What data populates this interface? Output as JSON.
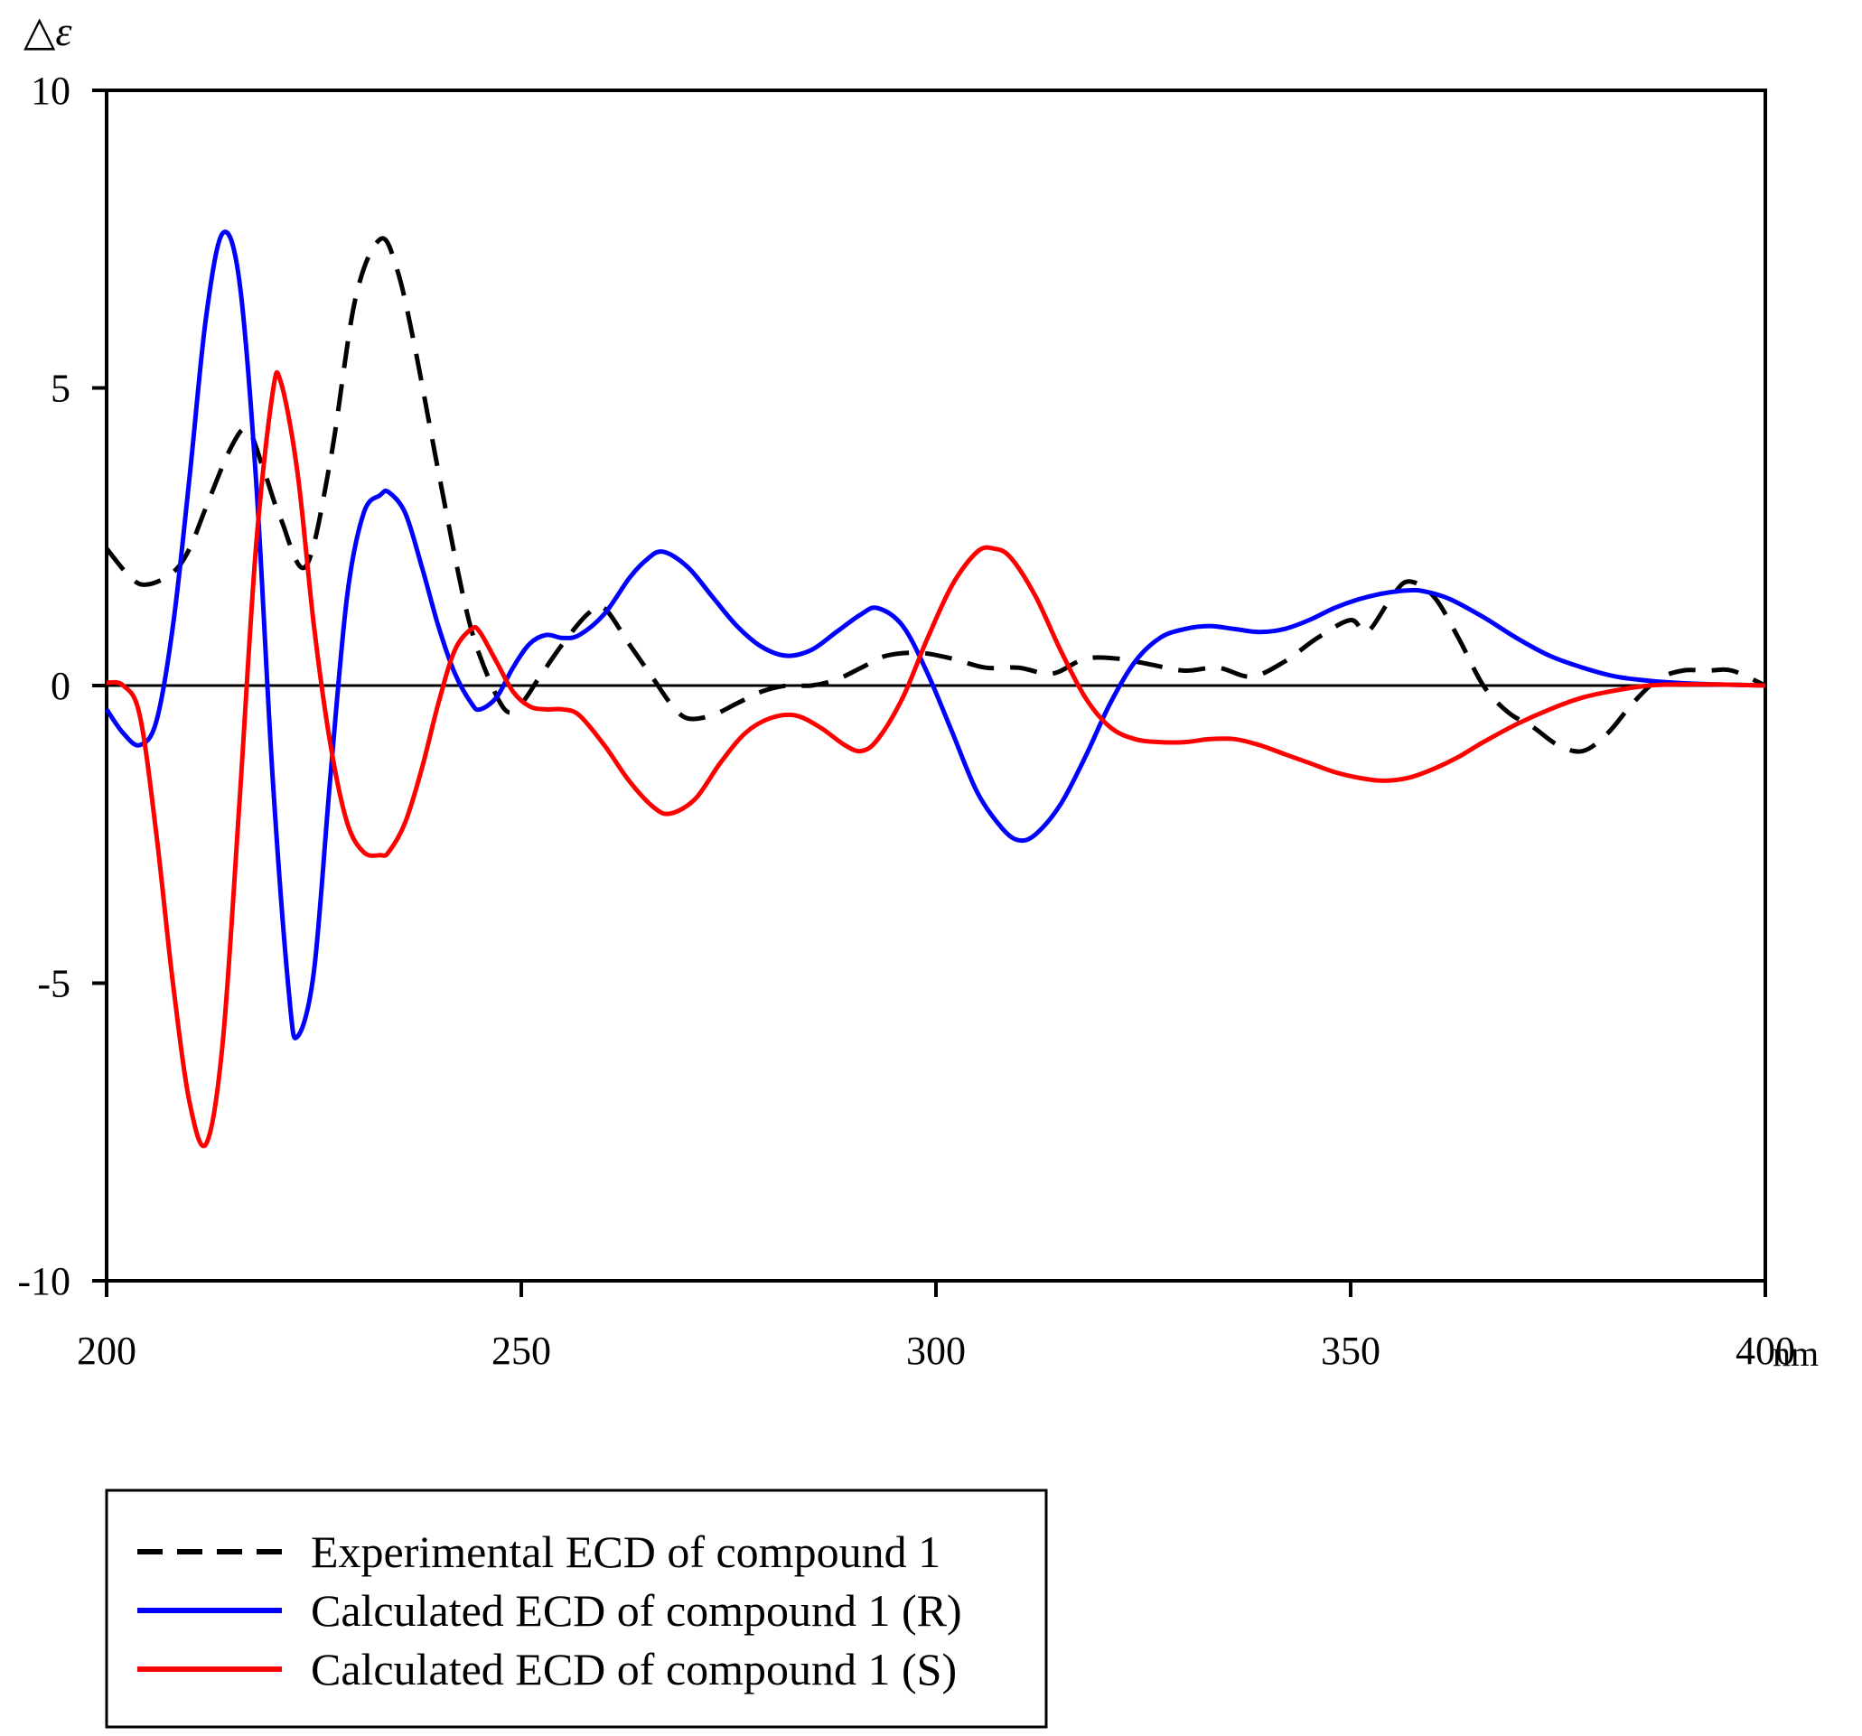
{
  "chart_data": {
    "type": "line",
    "ylabel": "△ε",
    "xlabel": "",
    "x_unit": "nm",
    "xlim": [
      200,
      400
    ],
    "ylim": [
      -10,
      10
    ],
    "x_ticks": [
      "200",
      "250",
      "300",
      "350",
      "400"
    ],
    "y_ticks": [
      "10",
      "5",
      "0",
      "-5",
      "-10"
    ],
    "grid": false,
    "legend_position": "bottom-left",
    "series": [
      {
        "name": "Experimental ECD of compound 1",
        "style": "dashed",
        "color": "#000000",
        "x": [
          200,
          203,
          205,
          208,
          210,
          212,
          215,
          217,
          219,
          221,
          224,
          227,
          230,
          233,
          235,
          237,
          240,
          243,
          245,
          248,
          250,
          252,
          255,
          258,
          260,
          263,
          266,
          268,
          270,
          273,
          276,
          279,
          282,
          285,
          288,
          291,
          294,
          298,
          302,
          306,
          310,
          314,
          318,
          322,
          326,
          330,
          334,
          338,
          342,
          346,
          350,
          352,
          355,
          357,
          360,
          363,
          366,
          369,
          372,
          375,
          378,
          381,
          384,
          387,
          390,
          393,
          396,
          400
        ],
        "values": [
          2.3,
          1.8,
          1.7,
          1.9,
          2.3,
          3.0,
          4.0,
          4.3,
          3.6,
          2.8,
          2.0,
          3.8,
          6.5,
          7.5,
          7.0,
          5.8,
          3.6,
          1.5,
          0.5,
          -0.4,
          -0.3,
          0.1,
          0.7,
          1.2,
          1.3,
          0.7,
          0.1,
          -0.3,
          -0.55,
          -0.5,
          -0.3,
          -0.1,
          0.0,
          0.0,
          0.1,
          0.3,
          0.5,
          0.55,
          0.45,
          0.3,
          0.3,
          0.2,
          0.45,
          0.45,
          0.35,
          0.25,
          0.3,
          0.15,
          0.4,
          0.8,
          1.1,
          0.9,
          1.5,
          1.75,
          1.5,
          0.8,
          0.0,
          -0.45,
          -0.7,
          -1.0,
          -1.1,
          -0.8,
          -0.3,
          0.1,
          0.25,
          0.25,
          0.25,
          0.0
        ]
      },
      {
        "name": "Calculated ECD of compound 1 (R)",
        "style": "solid",
        "color": "#0000ff",
        "x": [
          200,
          202,
          204,
          206,
          208,
          210,
          212,
          214,
          216,
          218,
          220,
          222,
          223,
          225,
          227,
          229,
          231,
          233,
          234,
          236,
          238,
          240,
          242,
          244,
          245,
          247,
          249,
          251,
          253,
          255,
          257,
          260,
          263,
          265,
          267,
          270,
          273,
          276,
          279,
          282,
          285,
          288,
          291,
          293,
          296,
          299,
          302,
          305,
          308,
          310,
          312,
          315,
          318,
          321,
          324,
          327,
          330,
          333,
          336,
          339,
          342,
          345,
          348,
          351,
          354,
          357,
          359,
          362,
          366,
          370,
          374,
          378,
          382,
          386,
          390,
          394,
          400
        ],
        "values": [
          -0.4,
          -0.8,
          -1.0,
          -0.6,
          1.0,
          3.5,
          6.2,
          7.6,
          6.8,
          3.5,
          -1.5,
          -5.2,
          -5.9,
          -4.8,
          -1.5,
          1.5,
          2.9,
          3.2,
          3.25,
          2.9,
          2.0,
          1.0,
          0.2,
          -0.3,
          -0.4,
          -0.2,
          0.3,
          0.7,
          0.85,
          0.8,
          0.85,
          1.2,
          1.8,
          2.1,
          2.25,
          2.0,
          1.5,
          1.0,
          0.65,
          0.5,
          0.6,
          0.9,
          1.2,
          1.3,
          1.0,
          0.2,
          -0.8,
          -1.8,
          -2.4,
          -2.6,
          -2.5,
          -2.0,
          -1.2,
          -0.3,
          0.4,
          0.8,
          0.95,
          1.0,
          0.95,
          0.9,
          0.95,
          1.1,
          1.3,
          1.45,
          1.55,
          1.6,
          1.58,
          1.45,
          1.15,
          0.8,
          0.5,
          0.3,
          0.15,
          0.08,
          0.04,
          0.02,
          0.0
        ]
      },
      {
        "name": "Calculated ECD of compound 1 (S)",
        "style": "solid",
        "color": "#ff0000",
        "x": [
          200,
          202,
          204,
          206,
          208,
          210,
          212,
          214,
          216,
          218,
          220,
          221,
          223,
          225,
          227,
          229,
          231,
          233,
          234,
          236,
          238,
          240,
          242,
          244,
          245,
          247,
          249,
          251,
          253,
          255,
          257,
          260,
          263,
          266,
          268,
          271,
          274,
          277,
          280,
          283,
          286,
          289,
          291,
          293,
          296,
          299,
          302,
          305,
          307,
          309,
          312,
          315,
          318,
          321,
          324,
          327,
          330,
          333,
          336,
          339,
          342,
          345,
          348,
          351,
          354,
          357,
          360,
          363,
          366,
          370,
          374,
          378,
          382,
          386,
          390,
          394,
          400
        ],
        "values": [
          0.05,
          0.0,
          -0.5,
          -2.5,
          -5.0,
          -7.0,
          -7.7,
          -6.0,
          -2.0,
          2.3,
          4.9,
          5.1,
          3.6,
          1.0,
          -1.0,
          -2.3,
          -2.8,
          -2.85,
          -2.8,
          -2.3,
          -1.4,
          -0.3,
          0.6,
          0.95,
          0.9,
          0.4,
          -0.1,
          -0.35,
          -0.4,
          -0.4,
          -0.5,
          -1.0,
          -1.6,
          -2.05,
          -2.15,
          -1.9,
          -1.3,
          -0.8,
          -0.55,
          -0.5,
          -0.7,
          -1.0,
          -1.1,
          -0.9,
          -0.2,
          0.8,
          1.7,
          2.25,
          2.3,
          2.15,
          1.5,
          0.6,
          -0.2,
          -0.7,
          -0.9,
          -0.95,
          -0.95,
          -0.9,
          -0.9,
          -1.0,
          -1.15,
          -1.3,
          -1.45,
          -1.55,
          -1.6,
          -1.55,
          -1.4,
          -1.2,
          -0.95,
          -0.65,
          -0.4,
          -0.2,
          -0.08,
          0.0,
          0.02,
          0.02,
          0.0
        ]
      }
    ]
  }
}
